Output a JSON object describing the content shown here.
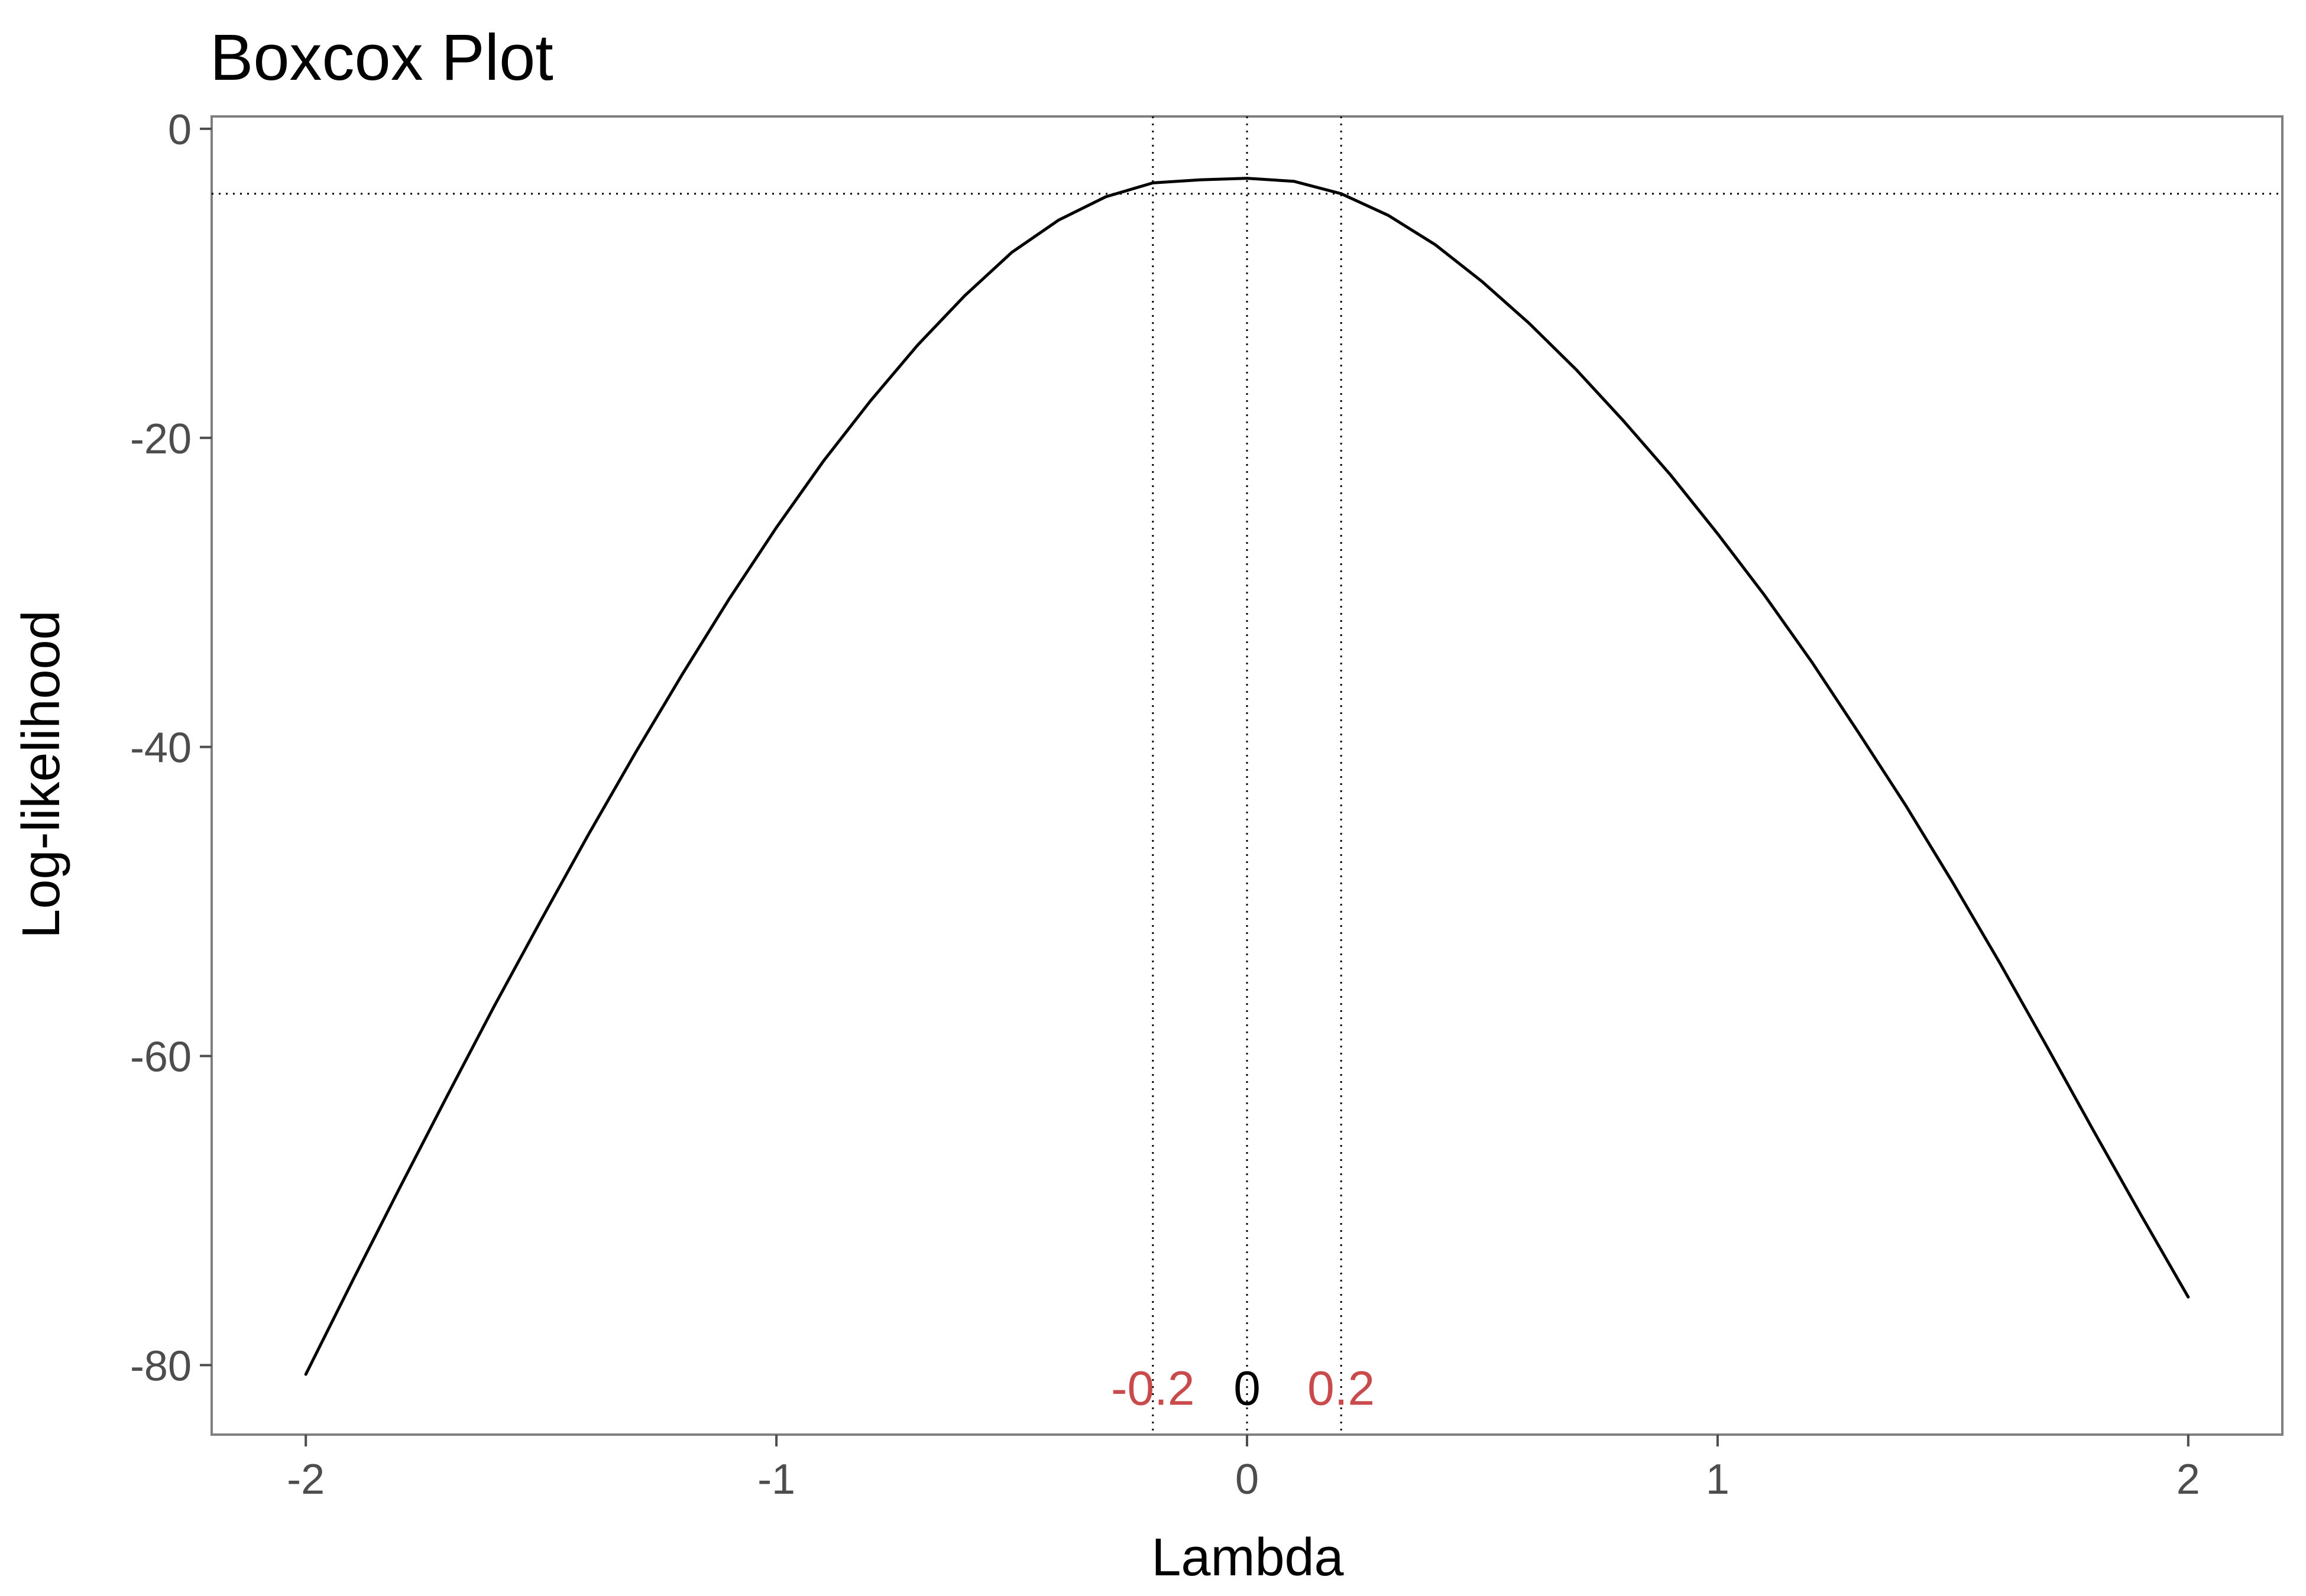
{
  "chart_data": {
    "type": "line",
    "title": "Boxcox Plot",
    "xlabel": "Lambda",
    "ylabel": "Log-likelihood",
    "xlim": [
      -2.2,
      2.2
    ],
    "ylim": [
      -84.5,
      0.8
    ],
    "x_ticks": [
      -2,
      -1,
      0,
      1,
      2
    ],
    "x_tick_labels": [
      "-2",
      "-1",
      "0",
      "1",
      "2"
    ],
    "y_ticks": [
      0,
      -20,
      -40,
      -60,
      -80
    ],
    "y_tick_labels": [
      "0",
      "-20",
      "-40",
      "-60",
      "-80"
    ],
    "grid": false,
    "series": [
      {
        "x": [
          -2.0,
          -1.9,
          -1.8,
          -1.7,
          -1.6,
          -1.5,
          -1.4,
          -1.3,
          -1.2,
          -1.1,
          -1.0,
          -0.9,
          -0.8,
          -0.7,
          -0.6,
          -0.5,
          -0.4,
          -0.3,
          -0.2,
          -0.1,
          0.0,
          0.1,
          0.2,
          0.3,
          0.4,
          0.5,
          0.6,
          0.7,
          0.8,
          0.9,
          1.0,
          1.1,
          1.2,
          1.3,
          1.4,
          1.5,
          1.6,
          1.7,
          1.8,
          1.9,
          2.0
        ],
        "y": [
          -80.6,
          -74.5,
          -68.5,
          -62.6,
          -56.8,
          -51.2,
          -45.7,
          -40.4,
          -35.3,
          -30.4,
          -25.8,
          -21.5,
          -17.6,
          -14.0,
          -10.8,
          -8.0,
          -5.9,
          -4.4,
          -3.5,
          -3.3,
          -3.2,
          -3.4,
          -4.2,
          -5.6,
          -7.5,
          -9.9,
          -12.6,
          -15.6,
          -18.9,
          -22.4,
          -26.2,
          -30.2,
          -34.5,
          -39.1,
          -43.8,
          -48.8,
          -54.0,
          -59.4,
          -64.9,
          -70.3,
          -75.6
        ]
      }
    ],
    "reference_lines": {
      "vertical_x": [
        -0.2,
        0,
        0.2
      ],
      "horizontal_y": -4.2
    },
    "annotations": [
      {
        "text": "-0.2",
        "x": -0.2,
        "y": -81.5,
        "color": "#c94a4a"
      },
      {
        "text": "0",
        "x": 0,
        "y": -81.5,
        "color": "#000000"
      },
      {
        "text": "0.2",
        "x": 0.2,
        "y": -81.5,
        "color": "#c94a4a"
      }
    ],
    "colors": {
      "line": "#000000",
      "panel_border": "#7f7f7f",
      "ci_label": "#c94a4a"
    }
  }
}
